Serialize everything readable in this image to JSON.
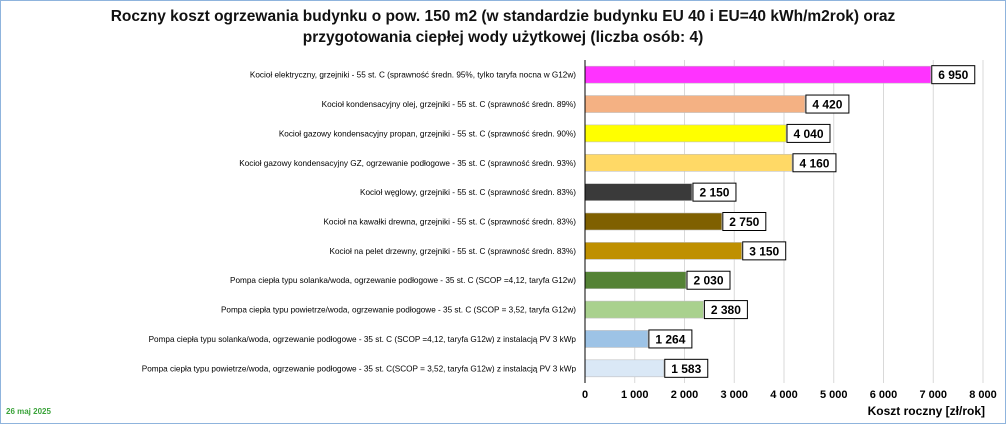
{
  "date_stamp": "26 maj 2025",
  "chart_data": {
    "type": "bar",
    "orientation": "horizontal",
    "title_lines": [
      "Roczny koszt ogrzewania budynku o pow. 150 m2 (w standardzie budynku EU 40 i EU=40 kWh/m2rok) oraz",
      "przygotowania ciepłej wody użytkowej (liczba osób: 4)"
    ],
    "xlabel": "Koszt roczny [zł/rok]",
    "ylabel": "",
    "xlim": [
      0,
      8000
    ],
    "xticks": [
      0,
      1000,
      2000,
      3000,
      4000,
      5000,
      6000,
      7000,
      8000
    ],
    "xtick_labels": [
      "0",
      "1 000",
      "2 000",
      "3 000",
      "4 000",
      "5 000",
      "6 000",
      "7 000",
      "8 000"
    ],
    "grid": "vertical",
    "categories": [
      "Kocioł elektryczny,  grzejniki - 55 st. C  (sprawność średn. 95%, tylko taryfa nocna w G12w)",
      "Kocioł  kondensacyjny olej,  grzejniki - 55 st. C (sprawność średn. 89%)",
      "Kocioł gazowy kondensacyjny propan, grzejniki - 55 st. C (sprawność średn. 90%)",
      "Kocioł gazowy kondensacyjny GZ, ogrzewanie podłogowe - 35 st. C (sprawność średn. 93%)",
      "Kocioł węglowy,  grzejniki - 55 st. C (sprawność średn. 83%)",
      "Kocioł na kawałki drewna, grzejniki - 55 st. C (sprawność średn. 83%)",
      "Kocioł na pelet drzewny, grzejniki - 55 st. C (sprawność średn. 83%)",
      "Pompa ciepła typu solanka/woda, ogrzewanie podłogowe - 35 st. C (SCOP =4,12, taryfa G12w)",
      "Pompa ciepła typu powietrze/woda, ogrzewanie podłogowe - 35 st. C (SCOP = 3,52, taryfa G12w)",
      "Pompa ciepła typu solanka/woda, ogrzewanie podłogowe - 35 st. C (SCOP =4,12, taryfa G12w) z instalacją PV 3 kWp",
      "Pompa ciepła typu powietrze/woda, ogrzewanie podłogowe - 35 st. C(SCOP = 3,52, taryfa G12w) z instalacją PV 3 kWp"
    ],
    "values": [
      6950,
      4420,
      4040,
      4160,
      2150,
      2750,
      3150,
      2030,
      2380,
      1264,
      1583
    ],
    "value_labels": [
      "6 950",
      "4 420",
      "4 040",
      "4 160",
      "2 150",
      "2 750",
      "3 150",
      "2 030",
      "2 380",
      "1 264",
      "1 583"
    ],
    "colors": [
      "#ff33ff",
      "#f4b183",
      "#ffff00",
      "#ffd966",
      "#3a3a3a",
      "#7f6000",
      "#bf9000",
      "#548235",
      "#a9d18e",
      "#9dc3e6",
      "#dae8f6"
    ]
  }
}
